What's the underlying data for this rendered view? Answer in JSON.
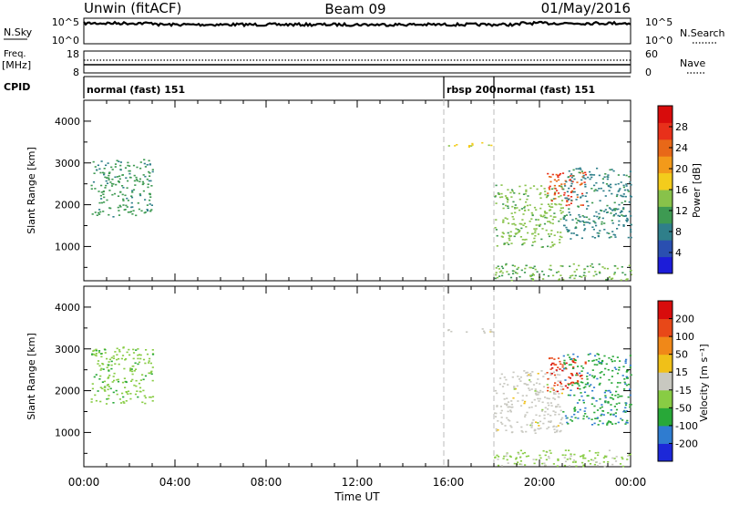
{
  "header": {
    "station": "Unwin (fitACF)",
    "beam": "Beam 09",
    "date": "01/May/2016"
  },
  "status_panels": {
    "nsky": {
      "label": "N.Sky",
      "tick_top": "10^5",
      "tick_bottom": "10^0",
      "right_label": "N.Search",
      "right_tick_top": "10^5",
      "right_tick_bottom": "10^0"
    },
    "freq": {
      "label_line1": "Freq.",
      "label_line2": "[MHz]",
      "tick_top": "18",
      "tick_bottom": "8",
      "right_label": "Nave",
      "right_tick_top": "60",
      "right_tick_bottom": "0"
    },
    "cpid": {
      "label": "CPID",
      "segments": [
        {
          "text": "normal (fast) 151",
          "start": 0.0,
          "end": 15.8
        },
        {
          "text": "rbsp 200",
          "start": 15.8,
          "end": 18.0
        },
        {
          "text": "normal (fast) 151",
          "start": 18.0,
          "end": 24.0
        }
      ]
    }
  },
  "x_axis": {
    "title": "Time UT",
    "ticks": [
      "00:00",
      "04:00",
      "08:00",
      "12:00",
      "16:00",
      "20:00",
      "00:00"
    ],
    "range_hours": [
      0,
      24
    ]
  },
  "mode_change_hours": [
    15.8,
    18.0
  ],
  "power_colorbar": {
    "title": "Power [dB]",
    "ticks": [
      "4",
      "8",
      "12",
      "16",
      "20",
      "24",
      "28"
    ],
    "colors": [
      "#1c1cd8",
      "#2a4fb0",
      "#2f7f8a",
      "#3e9a52",
      "#88c24a",
      "#f3cc1c",
      "#f39a1a",
      "#e86818",
      "#e8301a",
      "#d80c0c"
    ]
  },
  "velocity_colorbar": {
    "title": "Velocity [m s⁻¹]",
    "ticks": [
      "200",
      "100",
      "50",
      "15",
      "-15",
      "-50",
      "-100",
      "-200"
    ],
    "colors": [
      "#1c28d8",
      "#2f7cd0",
      "#28a838",
      "#88cc44",
      "#c8c8c0",
      "#f0c018",
      "#f08818",
      "#e84818",
      "#d80c0c"
    ]
  },
  "chart_data": [
    {
      "type": "heatmap",
      "name": "power",
      "ylabel": "Slant Range [km]",
      "xlabel": "Time UT",
      "xlim": [
        0,
        24
      ],
      "ylim": [
        180,
        4500
      ],
      "yticks": [
        "1000",
        "2000",
        "3000",
        "4000"
      ],
      "colorbar": "Power [dB]",
      "value_range": [
        0,
        30
      ],
      "regions": [
        {
          "t": [
            0.3,
            3.0
          ],
          "r": [
            1700,
            3100
          ],
          "v": 10
        },
        {
          "t": [
            15.8,
            18.0
          ],
          "r": [
            3400,
            3500
          ],
          "v": 16
        },
        {
          "t": [
            18.0,
            24.0
          ],
          "r": [
            200,
            600
          ],
          "v": 12
        },
        {
          "t": [
            18.0,
            21.0
          ],
          "r": [
            1000,
            2500
          ],
          "v": 13
        },
        {
          "t": [
            20.3,
            22.0
          ],
          "r": [
            2000,
            2800
          ],
          "v": 24
        },
        {
          "t": [
            21.0,
            24.0
          ],
          "r": [
            1200,
            2900
          ],
          "v": 8
        }
      ]
    },
    {
      "type": "heatmap",
      "name": "velocity",
      "ylabel": "Slant Range [km]",
      "xlabel": "Time UT",
      "xlim": [
        0,
        24
      ],
      "ylim": [
        180,
        4500
      ],
      "yticks": [
        "1000",
        "2000",
        "3000",
        "4000"
      ],
      "colorbar": "Velocity [m s⁻¹]",
      "value_range": [
        -200,
        200
      ],
      "regions": [
        {
          "t": [
            0.3,
            3.0
          ],
          "r": [
            1700,
            3100
          ],
          "v": -50
        },
        {
          "t": [
            15.8,
            18.0
          ],
          "r": [
            3400,
            3500
          ],
          "v": 0
        },
        {
          "t": [
            18.0,
            24.0
          ],
          "r": [
            200,
            600
          ],
          "v": -30
        },
        {
          "t": [
            18.0,
            21.0
          ],
          "r": [
            1000,
            2500
          ],
          "v": 0
        },
        {
          "t": [
            20.3,
            22.0
          ],
          "r": [
            2000,
            2800
          ],
          "v": 150
        },
        {
          "t": [
            21.0,
            24.0
          ],
          "r": [
            1200,
            2900
          ],
          "v": -100
        }
      ]
    }
  ]
}
